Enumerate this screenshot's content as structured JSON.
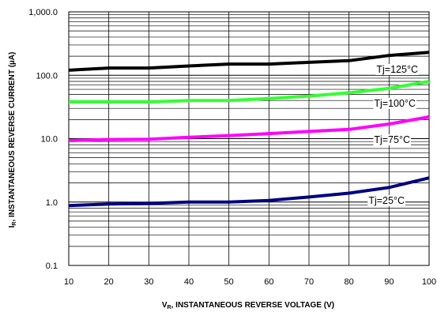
{
  "chart_data": {
    "type": "line",
    "x_scale": "linear",
    "y_scale": "log",
    "xlim": [
      10,
      100
    ],
    "ylim": [
      0.1,
      1000
    ],
    "grid": true,
    "x_ticks": [
      "10",
      "20",
      "30",
      "40",
      "50",
      "60",
      "70",
      "80",
      "90",
      "100"
    ],
    "y_ticks": [
      "1,000.0",
      "100.0",
      "10.0",
      "1.0",
      "0.1"
    ],
    "xlabel": {
      "main": "V",
      "sub": "R",
      "rest": ", INSTANTANEOUS REVERSE VOLTAGE (V)"
    },
    "ylabel": {
      "main": "I",
      "sub": "R",
      "rest": ", INSTANTANEOUS REVERSE CURRENT (µA)"
    },
    "x": [
      10,
      20,
      30,
      40,
      50,
      60,
      70,
      80,
      90,
      100
    ],
    "series": [
      {
        "name": "Tj=125°C",
        "color": "#000000",
        "values": [
          120,
          130,
          130,
          140,
          150,
          150,
          160,
          170,
          205,
          230
        ]
      },
      {
        "name": "Tj=100°C",
        "color": "#33ff33",
        "values": [
          38,
          38,
          38,
          40,
          40,
          43,
          47,
          53,
          62,
          80
        ]
      },
      {
        "name": "Tj=75°C",
        "color": "#ff00ff",
        "values": [
          9.3,
          9.7,
          9.8,
          10.5,
          11.2,
          12,
          13,
          14,
          17,
          22
        ]
      },
      {
        "name": "Tj=25°C",
        "color": "#000080",
        "values": [
          0.88,
          0.93,
          0.95,
          1.0,
          1.0,
          1.06,
          1.2,
          1.38,
          1.7,
          2.4
        ]
      }
    ]
  }
}
